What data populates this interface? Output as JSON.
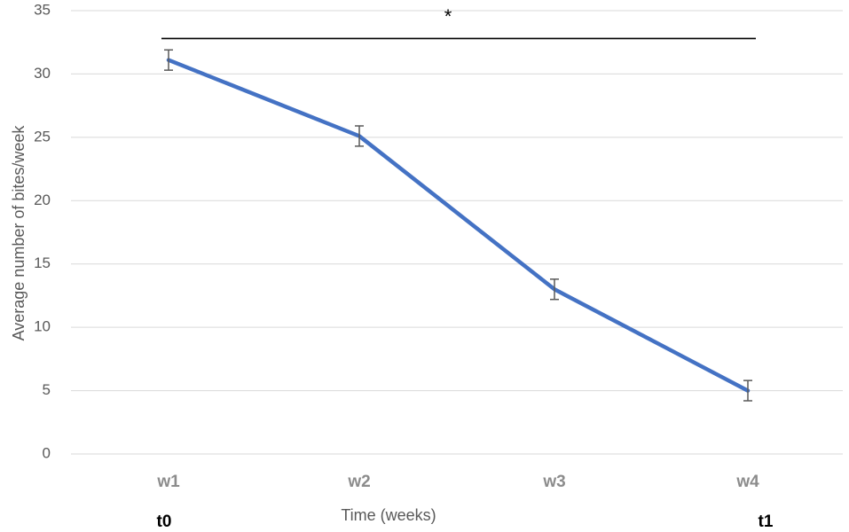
{
  "chart_data": {
    "type": "line",
    "categories": [
      "w1",
      "w2",
      "w3",
      "w4"
    ],
    "series": [
      {
        "values": [
          31.1,
          25.1,
          13.0,
          5.0
        ],
        "error": [
          0.8,
          0.8,
          0.8,
          0.8
        ],
        "color": "#4472c4"
      }
    ],
    "xlabel": "Time (weeks)",
    "ylabel": "Average number of bites/week",
    "ylim": [
      0,
      35
    ],
    "yticks": [
      0,
      5,
      10,
      15,
      20,
      25,
      30,
      35
    ],
    "grid": true,
    "time_markers": {
      "start": "t0",
      "end": "t1"
    },
    "significance": {
      "symbol": "*",
      "from": "w1",
      "to": "w4",
      "y": 32.8
    }
  }
}
